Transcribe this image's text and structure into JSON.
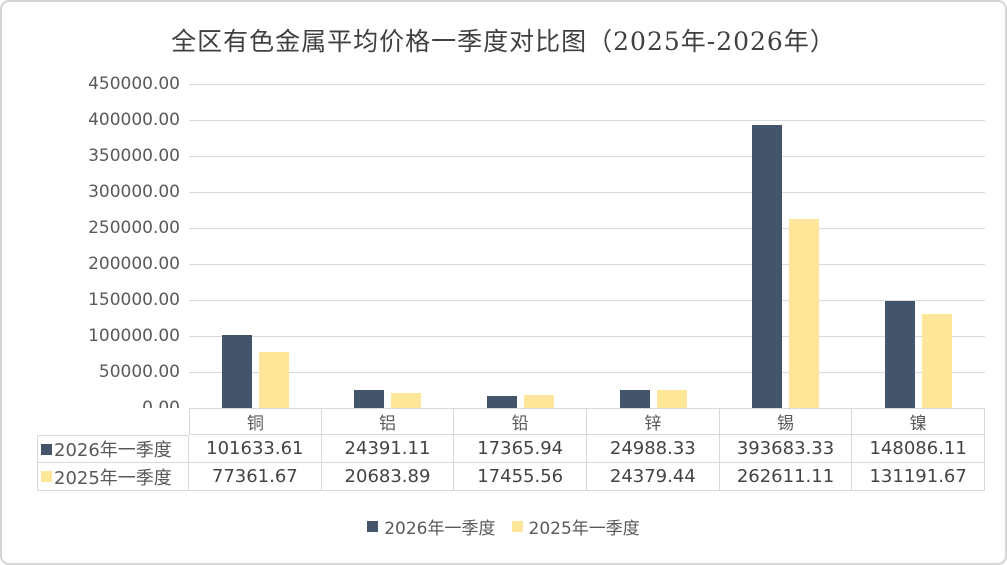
{
  "title": "全区有色金属平均价格一季度对比图（2025年-2026年）",
  "colors": {
    "series_2026": "#44546A",
    "series_2025": "#FFE699",
    "gridline": "#D9D9D9",
    "axis_text": "#595959",
    "value_text": "#444444",
    "title_text": "#404040"
  },
  "chart_data": {
    "type": "bar",
    "title": "全区有色金属平均价格一季度对比图（2025年-2026年）",
    "categories": [
      "铜",
      "铝",
      "铅",
      "锌",
      "锡",
      "镍"
    ],
    "series": [
      {
        "name": "2026年一季度",
        "color": "#44546A",
        "values": [
          101633.61,
          24391.11,
          17365.94,
          24988.33,
          393683.33,
          148086.11
        ],
        "labels": [
          "101633.61",
          "24391.11",
          "17365.94",
          "24988.33",
          "393683.33",
          "148086.11"
        ]
      },
      {
        "name": "2025年一季度",
        "color": "#FFE699",
        "values": [
          77361.67,
          20683.89,
          17455.56,
          24379.44,
          262611.11,
          131191.67
        ],
        "labels": [
          "77361.67",
          "20683.89",
          "17455.56",
          "24379.44",
          "262611.11",
          "131191.67"
        ]
      }
    ],
    "xlabel": "",
    "ylabel": "",
    "ylim": [
      0,
      450000
    ],
    "ytick_step": 50000,
    "ytick_labels": [
      "450000.00",
      "400000.00",
      "350000.00",
      "300000.00",
      "250000.00",
      "200000.00",
      "150000.00",
      "100000.00",
      "50000.00",
      "0.00"
    ],
    "grid": true,
    "legend_position": "bottom",
    "data_table_shown": true
  }
}
